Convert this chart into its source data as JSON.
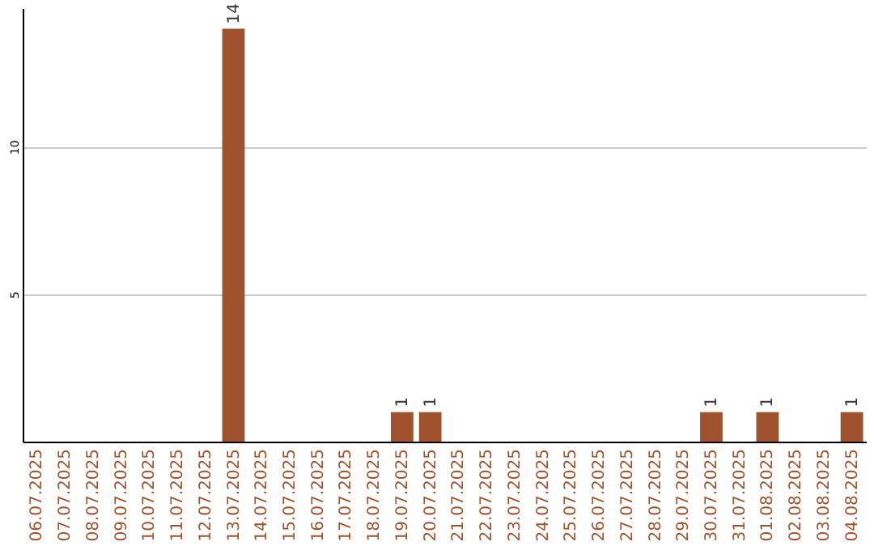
{
  "chart_data": {
    "type": "bar",
    "categories": [
      "06.07.2025",
      "07.07.2025",
      "08.07.2025",
      "09.07.2025",
      "10.07.2025",
      "11.07.2025",
      "12.07.2025",
      "13.07.2025",
      "14.07.2025",
      "15.07.2025",
      "16.07.2025",
      "17.07.2025",
      "18.07.2025",
      "19.07.2025",
      "20.07.2025",
      "21.07.2025",
      "22.07.2025",
      "23.07.2025",
      "24.07.2025",
      "25.07.2025",
      "26.07.2025",
      "27.07.2025",
      "28.07.2025",
      "29.07.2025",
      "30.07.2025",
      "31.07.2025",
      "01.08.2025",
      "02.08.2025",
      "03.08.2025",
      "04.08.2025"
    ],
    "values": [
      0,
      0,
      0,
      0,
      0,
      0,
      0,
      14,
      0,
      0,
      0,
      0,
      0,
      1,
      1,
      0,
      0,
      0,
      0,
      0,
      0,
      0,
      0,
      0,
      1,
      0,
      1,
      0,
      0,
      1
    ],
    "value_labels": [
      null,
      null,
      null,
      null,
      null,
      null,
      null,
      "14",
      null,
      null,
      null,
      null,
      null,
      "1",
      "1",
      null,
      null,
      null,
      null,
      null,
      null,
      null,
      null,
      null,
      "1",
      null,
      "1",
      null,
      null,
      "1"
    ],
    "color": "#a0522d",
    "ylim": [
      0,
      14.7
    ],
    "yticks": [
      5,
      10
    ],
    "grid": "y"
  }
}
